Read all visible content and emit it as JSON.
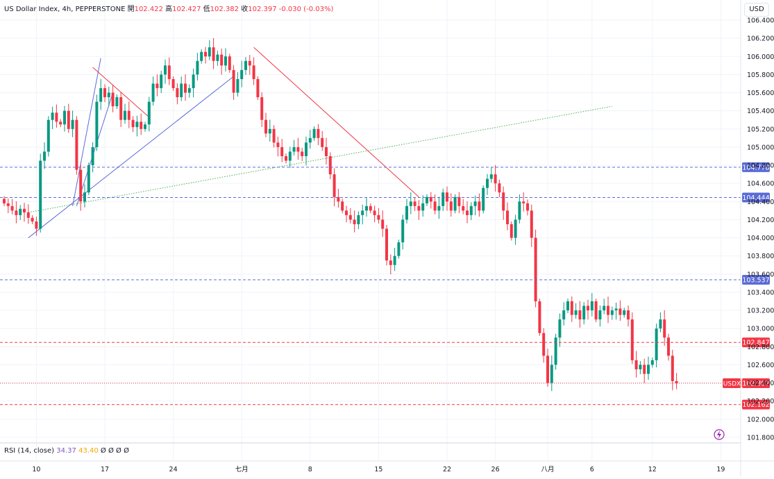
{
  "header": {
    "symbol": "US Dollar Index, 4h, PEPPERSTONE",
    "open_label": "開",
    "open": "102.422",
    "high_label": "高",
    "high": "102.427",
    "low_label": "低",
    "low": "102.382",
    "close_label": "收",
    "close": "102.397",
    "change": "-0.030 (-0.03%)"
  },
  "currency": "USD",
  "rsi": {
    "label": "RSI (14, close)",
    "v1": "34.37",
    "v2": "43.40",
    "extra": "Ø Ø Ø Ø"
  },
  "chart_data": {
    "type": "candlestick",
    "title": "US Dollar Index, 4h, PEPPERSTONE",
    "ylim": [
      101.7,
      106.55
    ],
    "y_ticks": [
      "101.800",
      "102.000",
      "102.200",
      "102.400",
      "102.600",
      "102.800",
      "103.000",
      "103.200",
      "103.400",
      "103.600",
      "103.800",
      "104.000",
      "104.200",
      "104.400",
      "104.600",
      "104.800",
      "105.000",
      "105.200",
      "105.400",
      "105.600",
      "105.800",
      "106.000",
      "106.200",
      "106.400"
    ],
    "x_ticks": [
      {
        "label": "10",
        "i": 8
      },
      {
        "label": "17",
        "i": 25
      },
      {
        "label": "24",
        "i": 42
      },
      {
        "label": "七月",
        "i": 59
      },
      {
        "label": "8",
        "i": 76
      },
      {
        "label": "15",
        "i": 93
      },
      {
        "label": "22",
        "i": 110
      },
      {
        "label": "26",
        "i": 122
      },
      {
        "label": "八月",
        "i": 135
      },
      {
        "label": "6",
        "i": 146
      },
      {
        "label": "12",
        "i": 161
      },
      {
        "label": "19",
        "i": 178
      }
    ],
    "closes": [
      104.38,
      104.35,
      104.3,
      104.25,
      104.32,
      104.28,
      104.22,
      104.18,
      104.1,
      104.85,
      104.95,
      105.3,
      105.38,
      105.28,
      105.25,
      105.4,
      105.2,
      105.3,
      104.75,
      104.4,
      104.5,
      104.8,
      105.0,
      105.5,
      105.65,
      105.55,
      105.6,
      105.45,
      105.55,
      105.3,
      105.4,
      105.3,
      105.22,
      105.28,
      105.2,
      105.25,
      105.5,
      105.7,
      105.65,
      105.8,
      105.9,
      105.75,
      105.65,
      105.55,
      105.7,
      105.6,
      105.65,
      105.8,
      105.95,
      106.05,
      106.0,
      106.1,
      105.95,
      106.02,
      105.9,
      106.0,
      105.85,
      105.6,
      105.75,
      105.85,
      105.95,
      105.9,
      105.75,
      105.55,
      105.3,
      105.15,
      105.2,
      105.05,
      105.0,
      104.9,
      104.85,
      104.95,
      105.0,
      104.95,
      104.9,
      105.05,
      105.1,
      105.2,
      105.1,
      105.0,
      104.9,
      104.7,
      104.45,
      104.4,
      104.3,
      104.25,
      104.2,
      104.15,
      104.25,
      104.3,
      104.35,
      104.3,
      104.25,
      104.2,
      104.1,
      103.75,
      103.7,
      103.8,
      103.95,
      104.2,
      104.35,
      104.4,
      104.35,
      104.3,
      104.38,
      104.45,
      104.4,
      104.3,
      104.35,
      104.5,
      104.4,
      104.3,
      104.45,
      104.35,
      104.3,
      104.25,
      104.35,
      104.4,
      104.3,
      104.55,
      104.65,
      104.7,
      104.6,
      104.5,
      104.3,
      104.15,
      104.0,
      104.2,
      104.4,
      104.38,
      104.3,
      104.0,
      103.3,
      102.95,
      102.7,
      102.4,
      102.6,
      102.9,
      103.1,
      103.2,
      103.3,
      103.15,
      103.2,
      103.1,
      103.25,
      103.2,
      103.3,
      103.1,
      103.2,
      103.25,
      103.15,
      103.2,
      103.22,
      103.15,
      103.2,
      103.1,
      102.65,
      102.55,
      102.6,
      102.5,
      102.6,
      102.65,
      103.0,
      103.1,
      102.9,
      102.7,
      102.42,
      102.397
    ]
  },
  "levels": [
    {
      "value": 104.778,
      "label": "104.778",
      "color": "#5b6bd6",
      "kind": "dashed-blue"
    },
    {
      "value": 104.444,
      "label": "104.444",
      "color": "#5b6bd6",
      "kind": "dashed-blue"
    },
    {
      "value": 103.537,
      "label": "103.537",
      "color": "#5b6bd6",
      "kind": "dashed-blue"
    },
    {
      "value": 102.847,
      "label": "102.847",
      "color": "#f23645",
      "kind": "dashed-red"
    },
    {
      "value": 102.397,
      "label": "102.397",
      "tag": "USDX",
      "color": "#f23645",
      "kind": "dotted-red"
    },
    {
      "value": 102.162,
      "label": "102.162",
      "color": "#f23645",
      "kind": "dashed-red"
    }
  ],
  "colors": {
    "up": "#089981",
    "down": "#f23645",
    "grid": "#f0f3fa",
    "axis_text": "#131722"
  }
}
